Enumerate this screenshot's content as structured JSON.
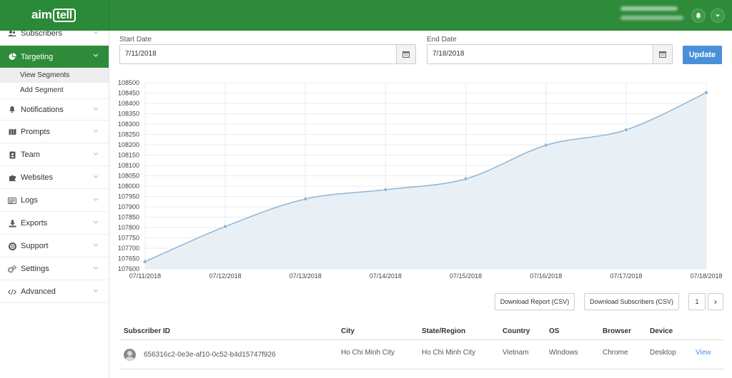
{
  "brand": {
    "logo_text_1": "aim",
    "logo_text_2": "tell"
  },
  "sidebar": {
    "items": [
      {
        "label": "Subscribers",
        "icon": "users-icon"
      },
      {
        "label": "Targeting",
        "icon": "pie-chart-icon",
        "active": true
      },
      {
        "label": "Notifications",
        "icon": "bell-icon"
      },
      {
        "label": "Prompts",
        "icon": "map-icon"
      },
      {
        "label": "Team",
        "icon": "id-badge-icon"
      },
      {
        "label": "Websites",
        "icon": "puzzle-icon"
      },
      {
        "label": "Logs",
        "icon": "list-icon"
      },
      {
        "label": "Exports",
        "icon": "download-icon"
      },
      {
        "label": "Support",
        "icon": "lifebuoy-icon"
      },
      {
        "label": "Settings",
        "icon": "cogs-icon"
      },
      {
        "label": "Advanced",
        "icon": "code-icon"
      }
    ],
    "subitems": [
      {
        "label": "View Segments",
        "selected": true
      },
      {
        "label": "Add Segment"
      }
    ]
  },
  "filters": {
    "start_label": "Start Date",
    "start_value": "7/11/2018",
    "end_label": "End Date",
    "end_value": "7/18/2018",
    "update_label": "Update"
  },
  "chart_data": {
    "type": "area",
    "categories": [
      "07/11/2018",
      "07/12/2018",
      "07/13/2018",
      "07/14/2018",
      "07/15/2018",
      "07/16/2018",
      "07/17/2018",
      "07/18/2018"
    ],
    "values": [
      107635,
      107805,
      107938,
      107983,
      108035,
      108198,
      108272,
      108452
    ],
    "ylim": [
      107600,
      108500
    ],
    "yticks": [
      107600,
      107650,
      107700,
      107750,
      107800,
      107850,
      107900,
      107950,
      108000,
      108050,
      108100,
      108150,
      108200,
      108250,
      108300,
      108350,
      108400,
      108450,
      108500
    ],
    "grid": true,
    "line_color": "#8db4d6",
    "fill_color": "#e6eef5"
  },
  "actions": {
    "download_report": "Download Report (CSV)",
    "download_subscribers": "Download Subscribers (CSV)",
    "page": "1",
    "next": "›"
  },
  "table": {
    "headers": [
      "Subscriber ID",
      "City",
      "State/Region",
      "Country",
      "OS",
      "Browser",
      "Device"
    ],
    "rows": [
      {
        "id": "656316c2-0e3e-af10-0c52-b4d15747f926",
        "city": "Ho Chi Minh City",
        "state": "Ho Chi Minh City",
        "country": "Vietnam",
        "os": "Windows",
        "browser": "Chrome",
        "device": "Desktop",
        "action": "View"
      }
    ]
  }
}
